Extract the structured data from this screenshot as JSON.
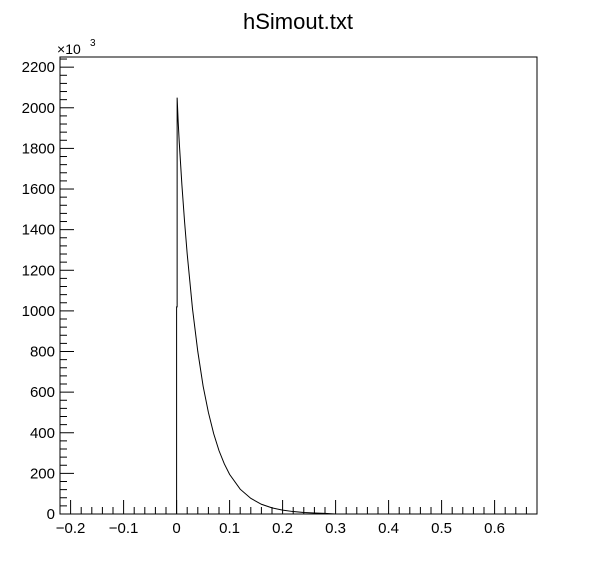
{
  "chart_data": {
    "type": "line",
    "title": "hSimout.txt",
    "xlabel": "",
    "ylabel": "",
    "y_multiplier_base": "10",
    "y_multiplier_exponent": "3",
    "xlim": [
      -0.22,
      0.68
    ],
    "ylim": [
      0,
      2250
    ],
    "x_ticks": [
      -0.2,
      -0.1,
      0,
      0.1,
      0.2,
      0.3,
      0.4,
      0.5,
      0.6
    ],
    "x_tick_labels": [
      "−0.2",
      "−0.1",
      "0",
      "0.1",
      "0.2",
      "0.3",
      "0.4",
      "0.5",
      "0.6"
    ],
    "y_ticks": [
      0,
      200,
      400,
      600,
      800,
      1000,
      1200,
      1400,
      1600,
      1800,
      2000,
      2200
    ],
    "y_tick_labels": [
      "0",
      "200",
      "400",
      "600",
      "800",
      "1000",
      "1200",
      "1400",
      "1600",
      "1800",
      "2000",
      "2200"
    ],
    "grid": false,
    "legend": "none",
    "series": [
      {
        "x": [
          -0.003,
          0.0,
          0.0,
          0.001,
          0.001,
          0.003,
          0.005,
          0.01,
          0.015,
          0.02,
          0.03,
          0.04,
          0.05,
          0.06,
          0.07,
          0.08,
          0.09,
          0.1,
          0.12,
          0.14,
          0.16,
          0.18,
          0.2,
          0.22,
          0.24,
          0.26,
          0.28,
          0.3
        ],
        "y": [
          0,
          0,
          1020,
          1020,
          2050,
          1930,
          1830,
          1620,
          1440,
          1280,
          1010,
          800,
          630,
          500,
          395,
          312,
          247,
          195,
          122,
          77,
          48,
          30,
          19,
          12,
          7.5,
          4.7,
          3,
          0
        ]
      }
    ]
  }
}
